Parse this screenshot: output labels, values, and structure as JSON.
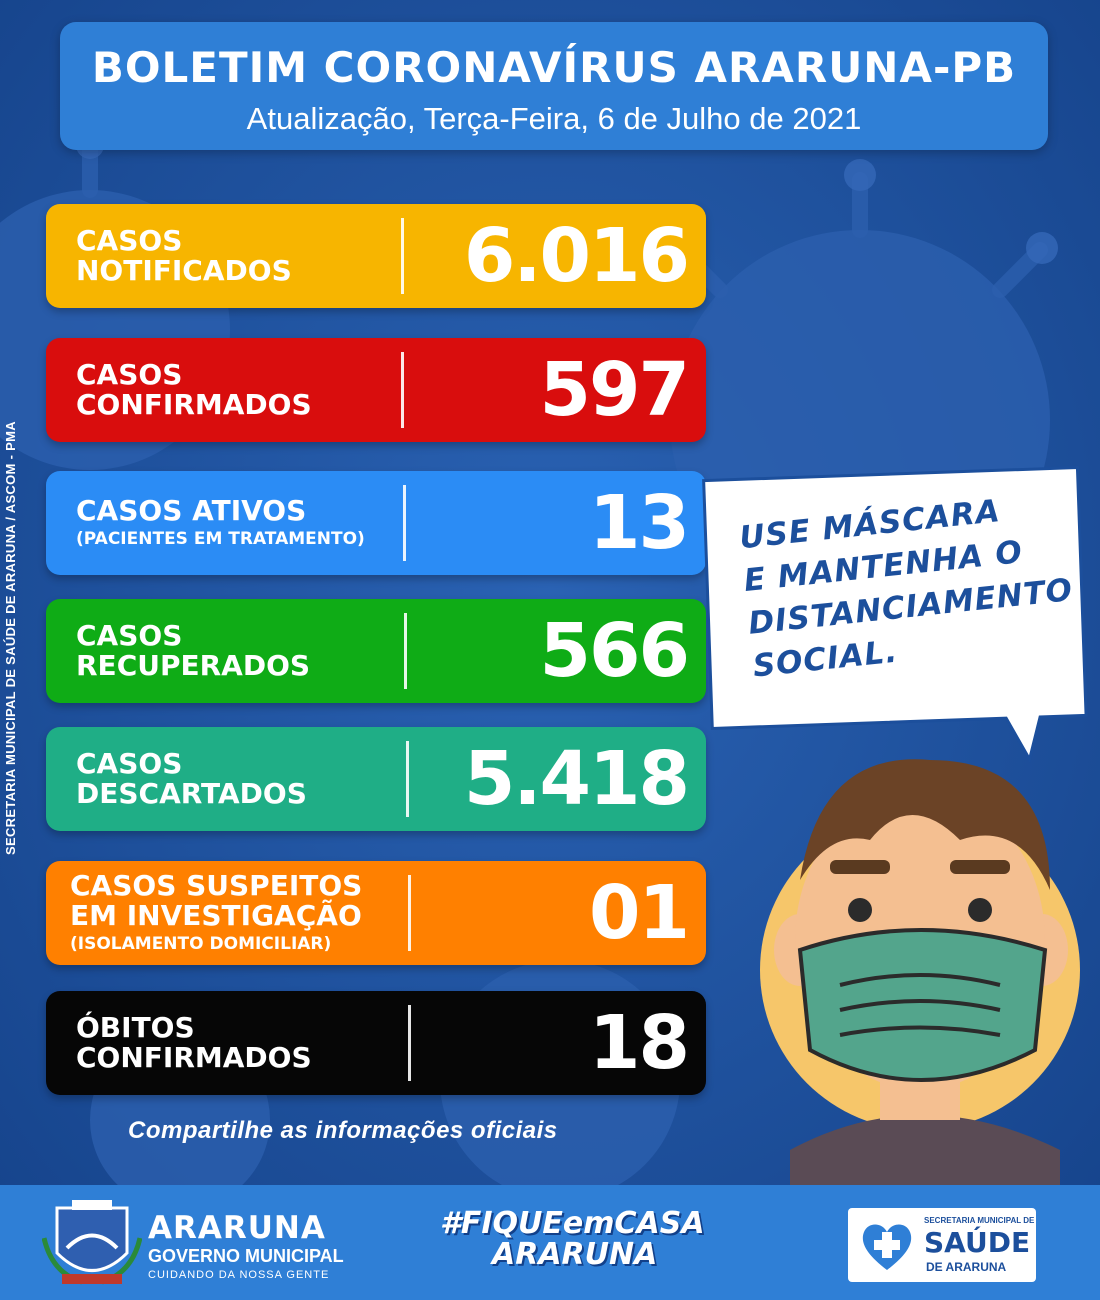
{
  "header": {
    "title": "BOLETIM CORONAVÍRUS ARARUNA-PB",
    "subtitle": "Atualização, Terça-Feira, 6 de Julho de 2021"
  },
  "side_credit": "SECRETARIA MUNICIPAL DE SAÚDE DE ARARUNA / ASCOM - PMA",
  "stats": [
    {
      "line1": "CASOS",
      "line2": "NOTIFICADOS",
      "sub": "",
      "value": "6.016",
      "color": "#f7b500"
    },
    {
      "line1": "CASOS",
      "line2": "CONFIRMADOS",
      "sub": "",
      "value": "597",
      "color": "#d90d0d"
    },
    {
      "line1": "CASOS ATIVOS",
      "line2": "",
      "sub": "(PACIENTES EM TRATAMENTO)",
      "value": "13",
      "color": "#2b8cf5"
    },
    {
      "line1": "CASOS",
      "line2": "RECUPERADOS",
      "sub": "",
      "value": "566",
      "color": "#0fac16"
    },
    {
      "line1": "CASOS",
      "line2": "DESCARTADOS",
      "sub": "",
      "value": "5.418",
      "color": "#1fae86"
    },
    {
      "line1": "CASOS SUSPEITOS",
      "line2": "EM INVESTIGAÇÃO",
      "sub": "(ISOLAMENTO DOMICILIAR)",
      "value": "01",
      "color": "#ff8000"
    },
    {
      "line1": "ÓBITOS",
      "line2": "CONFIRMADOS",
      "sub": "",
      "value": "18",
      "color": "#060606"
    }
  ],
  "bubble": {
    "line1": "USE MÁSCARA",
    "line2": "E MANTENHA O",
    "line3": "DISTANCIAMENTO",
    "line4": "SOCIAL."
  },
  "share_text": "Compartilhe as informações oficiais",
  "footer": {
    "gov_name": "ARARUNA",
    "gov_unit": "GOVERNO MUNICIPAL",
    "gov_motto": "CUIDANDO DA NOSSA GENTE",
    "crest_years": "ARARUNA",
    "hashtag_line1": "#FIQUEemCASA",
    "hashtag_line2": "ARARUNA",
    "health_line1": "SECRETARIA MUNICIPAL DE",
    "health_line2": "SAÚDE",
    "health_line3": "DE ARARUNA"
  }
}
